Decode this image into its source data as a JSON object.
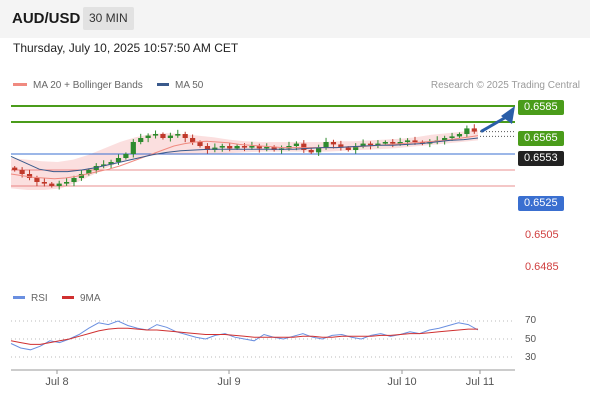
{
  "header": {
    "symbol": "AUD/USD",
    "timeframe": "30 MIN"
  },
  "datetime": "Thursday, July 10, 2025 10:57:50 AM CET",
  "legend": {
    "ma20_label": "MA 20 + Bollinger Bands",
    "ma50_label": "MA 50"
  },
  "credit": "Research © 2025 Trading Central",
  "rsi_legend": {
    "rsi_label": "RSI",
    "ma_label": "9MA"
  },
  "colors": {
    "resistance": "#4a9c1a",
    "support": "#3a6fd0",
    "lower_level": "#e06060",
    "last_price": "#222222",
    "candle_up": "#2e8b2e",
    "candle_down": "#c0392b",
    "bollinger_fill": "#f9d4d4",
    "ma20": "#f08a80",
    "ma50": "#3a5a8c",
    "rsi": "#6a8fe0",
    "rsi_ma": "#d03030",
    "arrow": "#2a5ea8"
  },
  "chart_data": {
    "type": "line",
    "title": "AUD/USD",
    "price_levels": [
      {
        "label": "0.6585",
        "value": 0.6585,
        "kind": "resistance"
      },
      {
        "label": "0.6565",
        "value": 0.6565,
        "kind": "resistance"
      },
      {
        "label": "0.6553",
        "value": 0.6553,
        "kind": "last"
      },
      {
        "label": "0.6525",
        "value": 0.6525,
        "kind": "support"
      },
      {
        "label": "0.6505",
        "value": 0.6505,
        "kind": "lower"
      },
      {
        "label": "0.6485",
        "value": 0.6485,
        "kind": "lower"
      }
    ],
    "price_close": [
      0.6505,
      0.65,
      0.6495,
      0.649,
      0.6488,
      0.6485,
      0.6488,
      0.649,
      0.6495,
      0.65,
      0.6505,
      0.651,
      0.6512,
      0.6515,
      0.652,
      0.6525,
      0.654,
      0.6545,
      0.6548,
      0.655,
      0.6545,
      0.6548,
      0.655,
      0.6545,
      0.654,
      0.6535,
      0.653,
      0.6533,
      0.6535,
      0.6532,
      0.6535,
      0.6533,
      0.6535,
      0.6532,
      0.6534,
      0.653,
      0.6532,
      0.6535,
      0.6538,
      0.653,
      0.6527,
      0.6533,
      0.654,
      0.6537,
      0.6533,
      0.653,
      0.6535,
      0.6538,
      0.6536,
      0.6538,
      0.654,
      0.6538,
      0.654,
      0.6542,
      0.654,
      0.6538,
      0.654,
      0.6542,
      0.6545,
      0.6547,
      0.655,
      0.6557,
      0.6553
    ],
    "ma20": [
      0.65,
      0.6498,
      0.6496,
      0.6495,
      0.6494,
      0.6495,
      0.6497,
      0.65,
      0.6503,
      0.6506,
      0.651,
      0.6515,
      0.652,
      0.6525,
      0.653,
      0.6535,
      0.6538,
      0.654,
      0.6541,
      0.654,
      0.6539,
      0.6537,
      0.6536,
      0.6535,
      0.6534,
      0.6533,
      0.6533,
      0.6533,
      0.6533,
      0.6533,
      0.6533,
      0.6534,
      0.6534,
      0.6535,
      0.6536,
      0.6537,
      0.6538,
      0.6539,
      0.654,
      0.6541,
      0.6542,
      0.6544,
      0.6546,
      0.6548
    ],
    "bollinger_upper": [
      0.652,
      0.6518,
      0.6516,
      0.6515,
      0.6518,
      0.6524,
      0.6532,
      0.654,
      0.6546,
      0.655,
      0.6551,
      0.655,
      0.6548,
      0.6546,
      0.6543,
      0.6541,
      0.654,
      0.654,
      0.654,
      0.654,
      0.654,
      0.6541,
      0.6541,
      0.6542,
      0.6543,
      0.6544,
      0.6546,
      0.6549,
      0.6551,
      0.6553,
      0.6555
    ],
    "bollinger_lower": [
      0.6482,
      0.648,
      0.648,
      0.6482,
      0.649,
      0.65,
      0.651,
      0.6518,
      0.6522,
      0.6524,
      0.6524,
      0.6524,
      0.6525,
      0.6526,
      0.6527,
      0.6528,
      0.6528,
      0.6528,
      0.6528,
      0.6528,
      0.6529,
      0.653,
      0.6531,
      0.6532,
      0.6534,
      0.6536,
      0.6538,
      0.654,
      0.6542
    ],
    "ma50": [
      0.6522,
      0.6514,
      0.6506,
      0.6503,
      0.6503,
      0.6505,
      0.6508,
      0.6512,
      0.6516,
      0.652,
      0.6524,
      0.6527,
      0.6529,
      0.653,
      0.6531,
      0.6531,
      0.6531,
      0.6531,
      0.6531,
      0.6531,
      0.6531,
      0.6532,
      0.6533,
      0.6533,
      0.6534,
      0.6535,
      0.6536,
      0.6536,
      0.6537,
      0.6538,
      0.654,
      0.6542,
      0.6543,
      0.6545
    ],
    "projection": {
      "from": 0.6553,
      "to": 0.6585
    },
    "rsi": [
      45,
      40,
      38,
      42,
      48,
      46,
      50,
      55,
      62,
      68,
      66,
      70,
      65,
      62,
      60,
      66,
      63,
      58,
      55,
      52,
      50,
      54,
      56,
      52,
      50,
      48,
      55,
      52,
      50,
      53,
      56,
      52,
      50,
      54,
      55,
      52,
      50,
      54,
      56,
      53,
      55,
      58,
      56,
      60,
      62,
      65,
      68,
      66,
      60
    ],
    "rsi_ma": [
      48,
      46,
      44,
      44,
      46,
      48,
      50,
      53,
      56,
      59,
      61,
      62,
      62,
      61,
      60,
      60,
      59,
      58,
      57,
      56,
      55,
      55,
      55,
      54,
      53,
      52,
      52,
      52,
      52,
      52,
      53,
      53,
      52,
      52,
      53,
      53,
      53,
      53,
      54,
      54,
      55,
      56,
      56,
      57,
      58,
      59,
      60,
      61,
      61
    ],
    "rsi_ticks": [
      "70",
      "50",
      "30"
    ],
    "rsi_range": [
      20,
      80
    ],
    "x_labels": [
      "Jul 8",
      "Jul 9",
      "Jul 10",
      "Jul 11"
    ],
    "price_range": [
      0.6475,
      0.66
    ]
  }
}
